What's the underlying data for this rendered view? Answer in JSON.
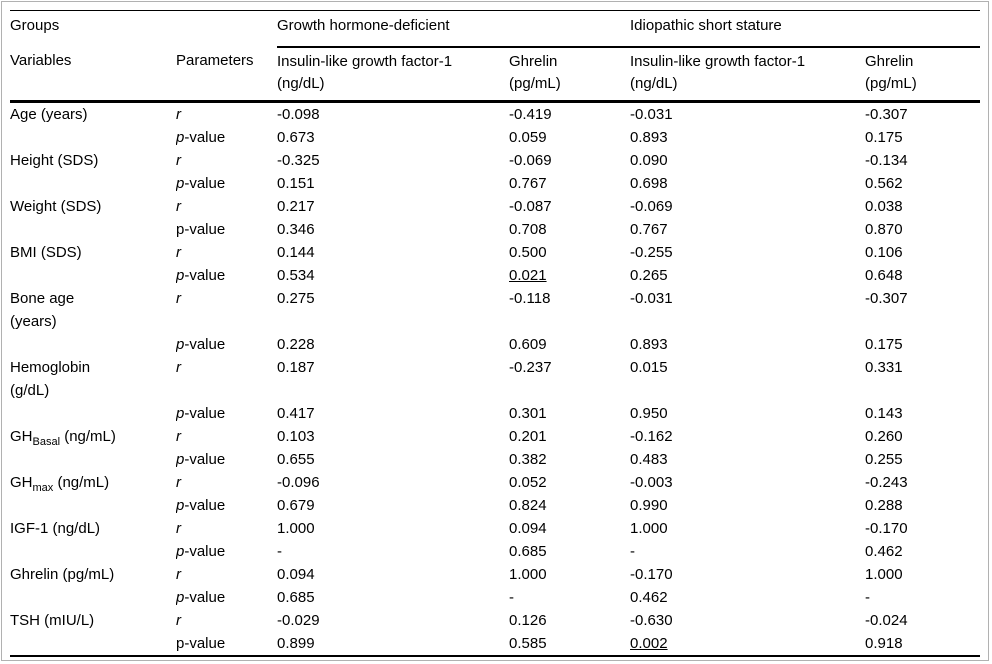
{
  "colors": {
    "background": "#ffffff",
    "text": "#000000",
    "rules": "#000000",
    "frame_border": "#b1b1b1"
  },
  "table": {
    "header": {
      "groups_label": "Groups",
      "variables_label": "Variables",
      "parameters_label": "Parameters",
      "group_headers": [
        "Growth hormone-deficient",
        "Idiopathic short stature"
      ],
      "column_headers": [
        {
          "line1": "Insulin-like growth factor-1",
          "line2": "(ng/dL)"
        },
        {
          "line1": "Ghrelin",
          "line2": "(pg/mL)"
        },
        {
          "line1": "Insulin-like growth factor-1",
          "line2": "(ng/dL)"
        },
        {
          "line1": "Ghrelin",
          "line2": "(pg/mL)"
        }
      ]
    },
    "labels": {
      "r": "r",
      "p_italic_char": "p",
      "p_rest": "-value",
      "p_plain": "p-value"
    },
    "rows": [
      {
        "variable": [
          {
            "text": "Age (years)"
          }
        ],
        "r": [
          "-0.098",
          "-0.419",
          "-0.031",
          "-0.307"
        ],
        "p": [
          "0.673",
          "0.059",
          "0.893",
          "0.175"
        ],
        "p_italic": true
      },
      {
        "variable": [
          {
            "text": "Height (SDS)"
          }
        ],
        "r": [
          "-0.325",
          "-0.069",
          "0.090",
          "-0.134"
        ],
        "p": [
          "0.151",
          "0.767",
          "0.698",
          "0.562"
        ],
        "p_italic": true
      },
      {
        "variable": [
          {
            "text": "Weight (SDS)"
          }
        ],
        "r": [
          "0.217",
          "-0.087",
          "-0.069",
          "0.038"
        ],
        "p": [
          "0.346",
          "0.708",
          "0.767",
          "0.870"
        ],
        "p_italic": false
      },
      {
        "variable": [
          {
            "text": "BMI (SDS)"
          }
        ],
        "r": [
          "0.144",
          "0.500",
          "-0.255",
          "0.106"
        ],
        "p": [
          "0.534",
          "0.021",
          "0.265",
          "0.648"
        ],
        "p_underline": [
          false,
          true,
          false,
          false
        ],
        "p_italic": true
      },
      {
        "variable": [
          {
            "text": "Bone age"
          },
          {
            "br": true
          },
          {
            "text": "(years)"
          }
        ],
        "r": [
          "0.275",
          "-0.118",
          "-0.031",
          "-0.307"
        ],
        "p": [
          "0.228",
          "0.609",
          "0.893",
          "0.175"
        ],
        "p_italic": true
      },
      {
        "variable": [
          {
            "text": "Hemoglobin"
          },
          {
            "br": true
          },
          {
            "text": "(g/dL)"
          }
        ],
        "r": [
          "0.187",
          "-0.237",
          "0.015",
          "0.331"
        ],
        "p": [
          "0.417",
          "0.301",
          "0.950",
          "0.143"
        ],
        "p_italic": true
      },
      {
        "variable": [
          {
            "text": "GH"
          },
          {
            "text": "Basal",
            "sub": true
          },
          {
            "text": " (ng/mL)"
          }
        ],
        "r": [
          "0.103",
          "0.201",
          "-0.162",
          "0.260"
        ],
        "p": [
          "0.655",
          "0.382",
          "0.483",
          "0.255"
        ],
        "p_italic": true
      },
      {
        "variable": [
          {
            "text": "GH"
          },
          {
            "text": "max",
            "sub": true
          },
          {
            "text": " (ng/mL)"
          }
        ],
        "r": [
          "-0.096",
          "0.052",
          "-0.003",
          "-0.243"
        ],
        "p": [
          "0.679",
          "0.824",
          "0.990",
          "0.288"
        ],
        "p_italic": true
      },
      {
        "variable": [
          {
            "text": "IGF-1 (ng/dL)"
          }
        ],
        "r": [
          "1.000",
          "0.094",
          "1.000",
          "-0.170"
        ],
        "p": [
          "-",
          "0.685",
          "-",
          "0.462"
        ],
        "p_italic": true
      },
      {
        "variable": [
          {
            "text": "Ghrelin (pg/mL)"
          }
        ],
        "r": [
          "0.094",
          "1.000",
          "-0.170",
          "1.000"
        ],
        "p": [
          "0.685",
          "-",
          "0.462",
          "-"
        ],
        "p_italic": true
      },
      {
        "variable": [
          {
            "text": "TSH (mIU/L)"
          }
        ],
        "r": [
          "-0.029",
          "0.126",
          "-0.630",
          "-0.024"
        ],
        "p": [
          "0.899",
          "0.585",
          "0.002",
          "0.918"
        ],
        "p_underline": [
          false,
          false,
          true,
          false
        ],
        "p_italic": false
      }
    ]
  }
}
